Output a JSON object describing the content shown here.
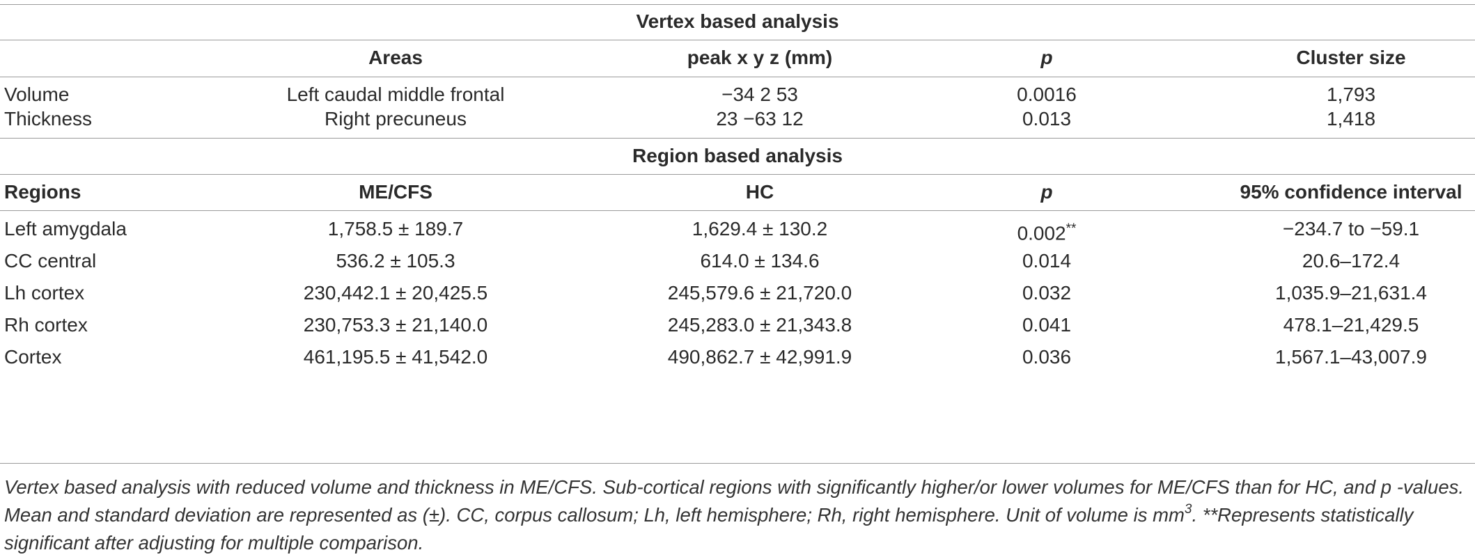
{
  "vertex": {
    "title": "Vertex based analysis",
    "headers": [
      "",
      "Areas",
      "peak x y z (mm)",
      "p",
      "Cluster size"
    ],
    "rows": [
      [
        "Volume",
        "Left caudal middle frontal",
        "−34 2 53",
        "0.0016",
        "1,793"
      ],
      [
        "Thickness",
        "Right precuneus",
        "23 −63 12",
        "0.013",
        "1,418"
      ]
    ]
  },
  "region": {
    "title": "Region based analysis",
    "headers": [
      "Regions",
      "ME/CFS",
      "HC",
      "p",
      "95% confidence interval"
    ],
    "rows": [
      [
        "Left amygdala",
        "1,758.5 ± 189.7",
        "1,629.4 ± 130.2",
        "0.002",
        "−234.7 to −59.1"
      ],
      [
        "CC central",
        "536.2 ± 105.3",
        "614.0 ± 134.6",
        "0.014",
        "20.6–172.4"
      ],
      [
        "Lh cortex",
        "230,442.1 ± 20,425.5",
        "245,579.6 ± 21,720.0",
        "0.032",
        "1,035.9–21,631.4"
      ],
      [
        "Rh cortex",
        "230,753.3 ± 21,140.0",
        "245,283.0 ± 21,343.8",
        "0.041",
        "478.1–21,429.5"
      ],
      [
        "Cortex",
        "461,195.5 ± 41,542.0",
        "490,862.7 ± 42,991.9",
        "0.036",
        "1,567.1–43,007.9"
      ]
    ],
    "significance_marker": "**"
  },
  "caption": {
    "part1": "Vertex based analysis with reduced volume and thickness in ME/CFS. Sub-cortical regions with significantly higher/or lower volumes for ME/CFS than for HC, and p -values. Mean and standard deviation are represented as (±). CC, corpus callosum; Lh, left hemisphere; Rh, right hemisphere. Unit of volume is mm",
    "sup": "3",
    "part2": ". **Represents statistically significant after adjusting for multiple comparison."
  }
}
